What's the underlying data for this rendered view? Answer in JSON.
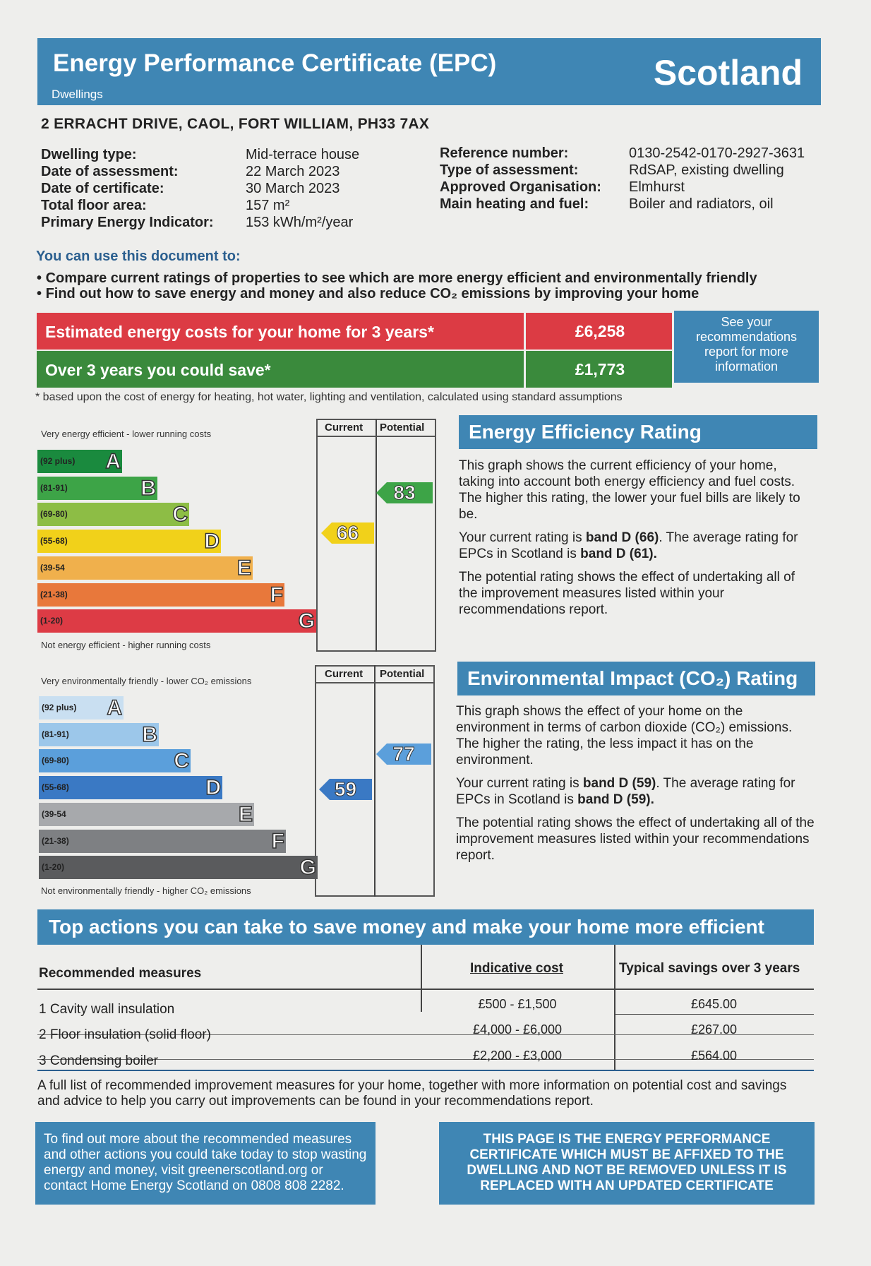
{
  "header": {
    "title": "Energy Performance Certificate (EPC)",
    "subtitle": "Dwellings",
    "region": "Scotland"
  },
  "address": "2 ERRACHT DRIVE, CAOL, FORT WILLIAM, PH33 7AX",
  "details_left": [
    {
      "label": "Dwelling type:",
      "value": "Mid-terrace house"
    },
    {
      "label": "Date of assessment:",
      "value": "22 March 2023"
    },
    {
      "label": "Date of certificate:",
      "value": "30 March 2023"
    },
    {
      "label": "Total floor area:",
      "value": "157 m²"
    },
    {
      "label": "Primary Energy Indicator:",
      "value": "153 kWh/m²/year"
    }
  ],
  "details_right": [
    {
      "label": "Reference number:",
      "value": "0130-2542-0170-2927-3631"
    },
    {
      "label": "Type of assessment:",
      "value": "RdSAP, existing dwelling"
    },
    {
      "label": "Approved Organisation:",
      "value": "Elmhurst"
    },
    {
      "label": "Main heating and fuel:",
      "value": "Boiler and radiators, oil"
    }
  ],
  "use_title": "You can use this document to:",
  "bullets": [
    "Compare current ratings of properties to see which are more energy efficient and environmentally friendly",
    "Find out how to save energy and money and also reduce CO₂ emissions by improving your home"
  ],
  "costs": {
    "row1_label": "Estimated energy costs for your home for 3 years*",
    "row1_value": "£6,258",
    "row2_label": "Over 3 years you could save*",
    "row2_value": "£1,773",
    "side_note": "See your recommendations report for more information",
    "footnote": "* based upon the cost of energy for heating, hot water, lighting and ventilation, calculated using standard assumptions"
  },
  "colors": {
    "blue": "#3f86b4",
    "red": "#dc3b44",
    "green": "#3a8a3c"
  },
  "energy": {
    "top_label": "Very energy efficient - lower running costs",
    "bottom_label": "Not energy efficient - higher running costs",
    "col_current": "Current",
    "col_potential": "Potential",
    "bands": [
      {
        "range": "(92 plus)",
        "letter": "A",
        "color": "#1a8a3e"
      },
      {
        "range": "(81-91)",
        "letter": "B",
        "color": "#3da447"
      },
      {
        "range": "(69-80)",
        "letter": "C",
        "color": "#8dbd45"
      },
      {
        "range": "(55-68)",
        "letter": "D",
        "color": "#f1d11a"
      },
      {
        "range": "(39-54",
        "letter": "E",
        "color": "#f0b04c"
      },
      {
        "range": "(21-38)",
        "letter": "F",
        "color": "#e8783b"
      },
      {
        "range": "(1-20)",
        "letter": "G",
        "color": "#dd3b45"
      }
    ],
    "current": "66",
    "potential": "83",
    "title": "Energy Efficiency Rating",
    "p1": "This graph shows the current efficiency of your home, taking into account both energy efficiency and fuel costs. The higher this rating, the lower your fuel bills are likely to be.",
    "p2a": "Your current rating is ",
    "p2b": "band D (66)",
    "p2c": ". The average rating for EPCs in Scotland is ",
    "p2d": "band D (61).",
    "p3": "The potential rating shows the effect of undertaking all of the improvement measures listed within your recommendations report."
  },
  "environment": {
    "top_label": "Very environmentally friendly - lower CO₂ emissions",
    "bottom_label": "Not environmentally friendly - higher CO₂ emissions",
    "col_current": "Current",
    "col_potential": "Potential",
    "bands": [
      {
        "range": "(92 plus)",
        "letter": "A",
        "color": "#c9dff1"
      },
      {
        "range": "(81-91)",
        "letter": "B",
        "color": "#9cc7ea"
      },
      {
        "range": "(69-80)",
        "letter": "C",
        "color": "#5b9fdb"
      },
      {
        "range": "(55-68)",
        "letter": "D",
        "color": "#3a79c4"
      },
      {
        "range": "(39-54",
        "letter": "E",
        "color": "#a7a9ac"
      },
      {
        "range": "(21-38)",
        "letter": "F",
        "color": "#7e8083"
      },
      {
        "range": "(1-20)",
        "letter": "G",
        "color": "#5a5b5d"
      }
    ],
    "current": "59",
    "potential": "77",
    "title": "Environmental Impact (CO₂) Rating",
    "p1": "This graph shows the effect of your home on the environment in terms of carbon dioxide (CO₂) emissions. The higher the rating, the less impact it has on the environment.",
    "p2a": "Your current rating is ",
    "p2b": "band D (59)",
    "p2c": ". The average rating for EPCs in Scotland is ",
    "p2d": "band D (59).",
    "p3": "The potential rating shows the effect of undertaking all of the improvement measures listed within your recommendations report."
  },
  "actions": {
    "title": "Top actions you can take to save money and make your home more efficient",
    "col1": "Recommended measures",
    "col2": "Indicative cost",
    "col3": "Typical savings over 3 years",
    "rows": [
      {
        "measure": "1 Cavity wall insulation",
        "cost": "£500 - £1,500",
        "saving": "£645.00"
      },
      {
        "measure": "2 Floor insulation (solid floor)",
        "cost": "£4,000 - £6,000",
        "saving": "£267.00"
      },
      {
        "measure": "3 Condensing boiler",
        "cost": "£2,200 - £3,000",
        "saving": "£564.00"
      }
    ],
    "footer": "A full list of recommended improvement measures for your home, together with more information on potential cost and savings and advice to help you carry out improvements can be found in your recommendations report."
  },
  "bottom": {
    "left": "To find out more about the recommended measures and other actions you could take today to stop wasting energy and money, visit greenerscotland.org or contact Home Energy Scotland on 0808 808 2282.",
    "right": "THIS PAGE IS THE ENERGY PERFORMANCE CERTIFICATE WHICH MUST BE AFFIXED TO THE DWELLING AND NOT BE REMOVED UNLESS IT IS REPLACED WITH AN UPDATED CERTIFICATE"
  }
}
